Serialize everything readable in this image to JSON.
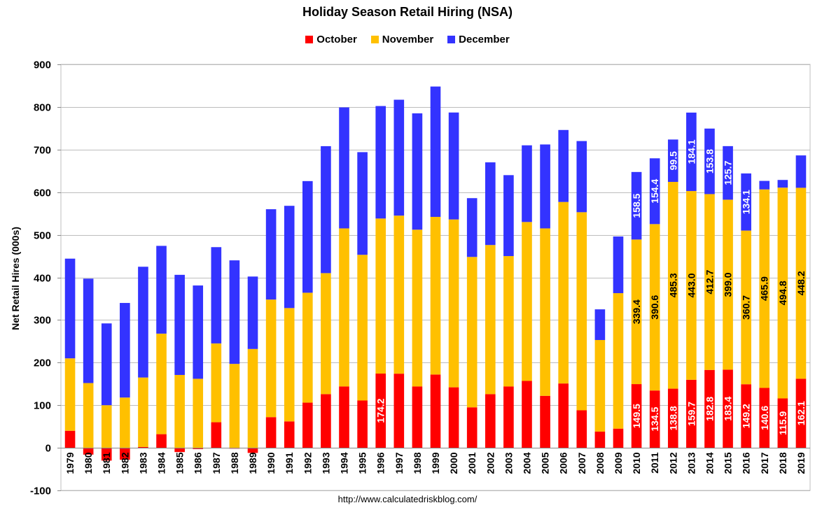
{
  "chart_data": {
    "type": "bar",
    "stacked": true,
    "title": "Holiday Season Retail Hiring (NSA)",
    "ylabel": "Net Retail Hires (000s)",
    "xlabel": "",
    "ylim": [
      -100,
      900
    ],
    "yticks": [
      -100,
      0,
      100,
      200,
      300,
      400,
      500,
      600,
      700,
      800,
      900
    ],
    "grid": true,
    "legend_position": "top-center",
    "source": "http://www.calculatedriskblog.com/",
    "categories": [
      "1979",
      "1980",
      "1981",
      "1982",
      "1983",
      "1984",
      "1985",
      "1986",
      "1987",
      "1988",
      "1989",
      "1990",
      "1991",
      "1992",
      "1993",
      "1994",
      "1995",
      "1996",
      "1997",
      "1998",
      "1999",
      "2000",
      "2001",
      "2002",
      "2003",
      "2004",
      "2005",
      "2006",
      "2007",
      "2008",
      "2009",
      "2010",
      "2011",
      "2012",
      "2013",
      "2014",
      "2015",
      "2016",
      "2017",
      "2018",
      "2019"
    ],
    "series": [
      {
        "name": "October",
        "color": "#ff0000",
        "values": [
          40,
          -16,
          -30,
          -28,
          2,
          32,
          -10,
          -3,
          60,
          -2,
          -12,
          72,
          62,
          106,
          126,
          144,
          111,
          174.2,
          174,
          144,
          172,
          142,
          95,
          126,
          144,
          157,
          122,
          151,
          88,
          38,
          45,
          149.5,
          134.5,
          138.8,
          159.7,
          182.8,
          183.4,
          149.2,
          140.6,
          115.9,
          162.1
        ],
        "labels": [
          "",
          "",
          "",
          "",
          "",
          "",
          "",
          "",
          "",
          "",
          "",
          "",
          "",
          "",
          "",
          "",
          "",
          "174.2",
          "",
          "",
          "",
          "",
          "",
          "",
          "",
          "",
          "",
          "",
          "",
          "",
          "",
          "149.5",
          "134.5",
          "138.8",
          "159.7",
          "182.8",
          "183.4",
          "149.2",
          "140.6",
          "115.9",
          "162.1"
        ]
      },
      {
        "name": "November",
        "color": "#ffc000",
        "values": [
          170,
          152,
          100,
          118,
          163,
          236,
          171,
          162,
          185,
          197,
          232,
          276,
          266,
          258,
          284,
          371,
          342,
          364,
          371,
          368,
          370,
          394,
          353,
          350,
          306,
          373,
          393,
          426,
          465,
          215,
          318,
          339.4,
          390.6,
          485.3,
          443.0,
          412.7,
          399.0,
          360.7,
          465.9,
          494.8,
          448.2
        ],
        "labels": [
          "",
          "",
          "",
          "",
          "",
          "",
          "",
          "",
          "",
          "",
          "",
          "",
          "",
          "",
          "",
          "",
          "",
          "",
          "",
          "",
          "",
          "",
          "",
          "",
          "",
          "",
          "",
          "",
          "",
          "",
          "",
          "339.4",
          "390.6",
          "485.3",
          "443.0",
          "412.7",
          "399.0",
          "360.7",
          "465.9",
          "494.8",
          "448.2"
        ]
      },
      {
        "name": "December",
        "color": "#3333ff",
        "values": [
          234,
          245,
          192,
          222,
          260,
          206,
          235,
          219,
          226,
          243,
          170,
          212,
          240,
          262,
          298,
          284,
          241,
          264,
          272,
          273,
          306,
          251,
          138,
          194,
          190,
          180,
          197,
          169,
          167,
          72,
          133,
          158.5,
          154.4,
          99.5,
          184.1,
          153.8,
          125.7,
          134.1,
          20,
          18,
          76
        ],
        "labels": [
          "",
          "",
          "",
          "",
          "",
          "",
          "",
          "",
          "",
          "",
          "",
          "",
          "",
          "",
          "",
          "",
          "",
          "",
          "",
          "",
          "",
          "",
          "",
          "",
          "",
          "",
          "",
          "",
          "",
          "",
          "",
          "158.5",
          "154.4",
          "99.5",
          "184.1",
          "153.8",
          "125.7",
          "134.1",
          "",
          "",
          ""
        ]
      }
    ]
  }
}
